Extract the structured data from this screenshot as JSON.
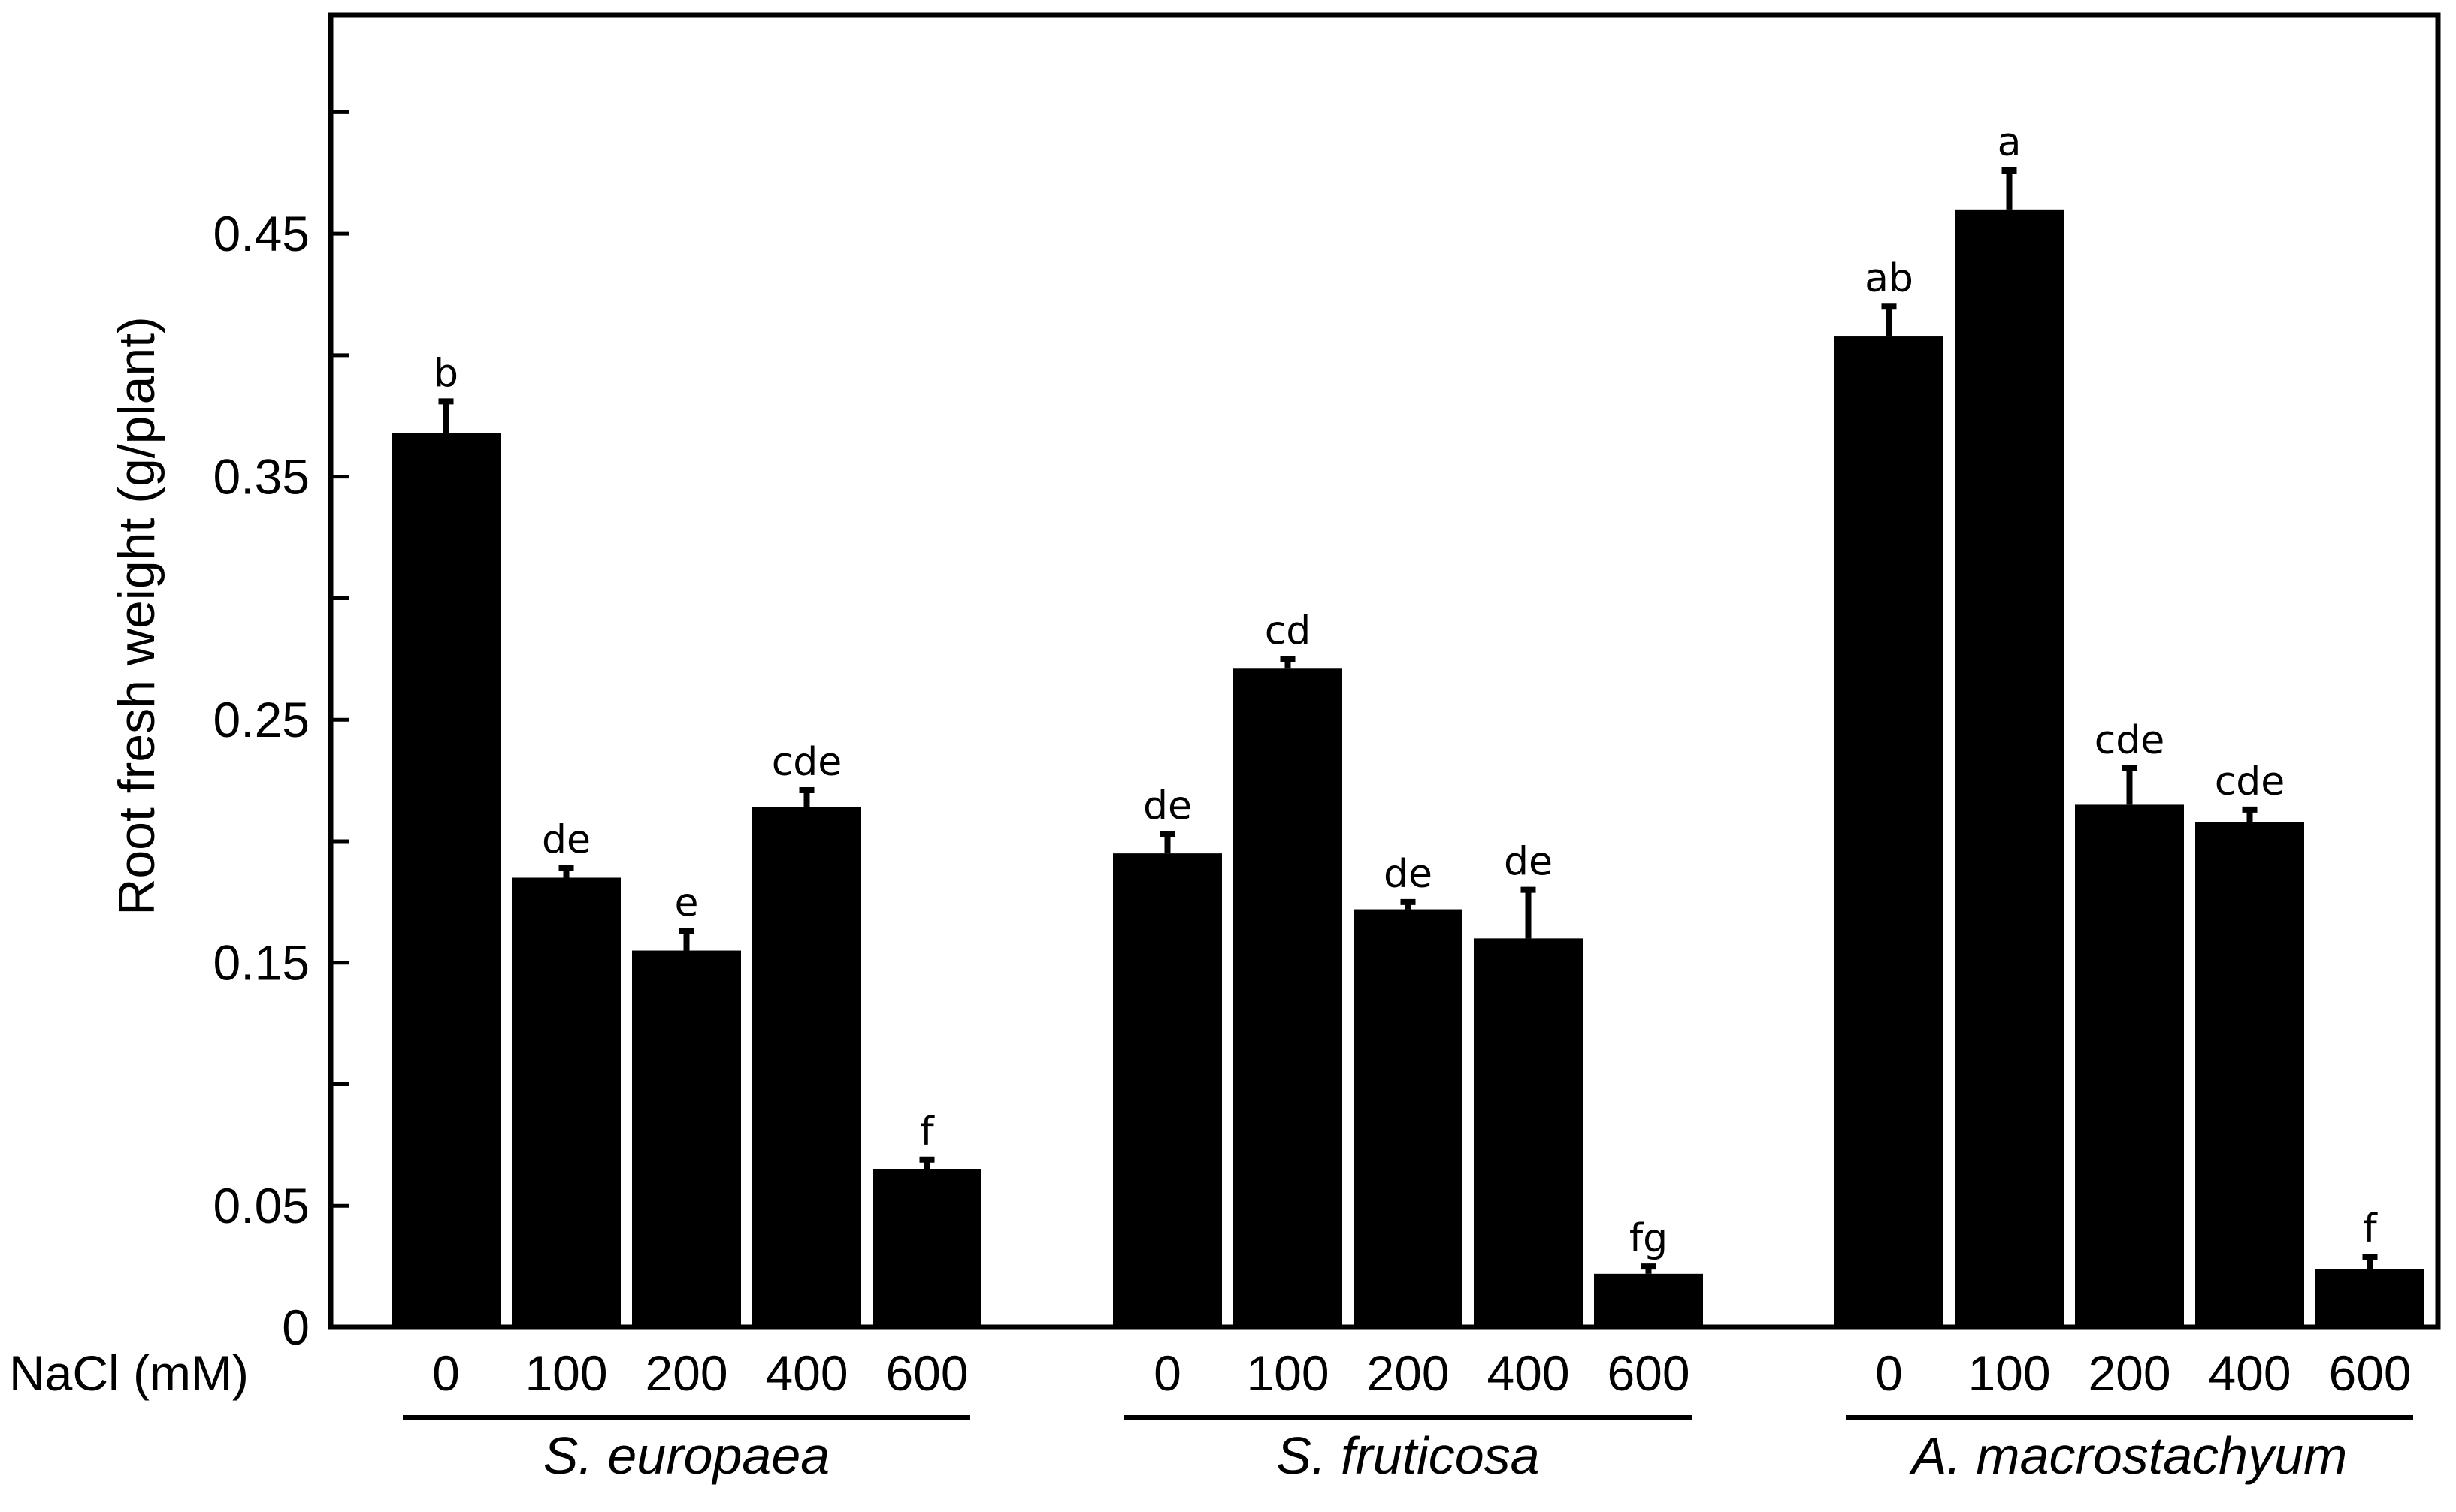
{
  "chart_data": {
    "type": "bar",
    "ylabel": "Root fresh weight (g/plant)",
    "xlabel": "NaCl (mM)",
    "ylim": [
      0,
      0.54
    ],
    "yticks_labeled": [
      "0",
      "0.05",
      "0.15",
      "0.25",
      "0.35",
      "0.45"
    ],
    "yticks_labeled_values": [
      0,
      0.05,
      0.15,
      0.25,
      0.35,
      0.45
    ],
    "yticks_minor_values": [
      0.1,
      0.2,
      0.3,
      0.4,
      0.5
    ],
    "bar_color": "#000000",
    "grid": false,
    "groups": [
      {
        "name": "S. europaea",
        "categories": [
          "0",
          "100",
          "200",
          "400",
          "600"
        ],
        "values": [
          0.368,
          0.185,
          0.155,
          0.214,
          0.065
        ],
        "errors": [
          0.013,
          0.004,
          0.008,
          0.007,
          0.004
        ],
        "letters": [
          "b",
          "de",
          "e",
          "cde",
          "f"
        ]
      },
      {
        "name": "S. fruticosa",
        "categories": [
          "0",
          "100",
          "200",
          "400",
          "600"
        ],
        "values": [
          0.195,
          0.271,
          0.172,
          0.16,
          0.022
        ],
        "errors": [
          0.008,
          0.004,
          0.003,
          0.02,
          0.003
        ],
        "letters": [
          "de",
          "cd",
          "de",
          "de",
          "fg"
        ]
      },
      {
        "name": "A. macrostachyum",
        "categories": [
          "0",
          "100",
          "200",
          "400",
          "600"
        ],
        "values": [
          0.408,
          0.46,
          0.215,
          0.208,
          0.024
        ],
        "errors": [
          0.012,
          0.016,
          0.015,
          0.005,
          0.005
        ],
        "letters": [
          "ab",
          "a",
          "cde",
          "cde",
          "f"
        ]
      }
    ]
  }
}
